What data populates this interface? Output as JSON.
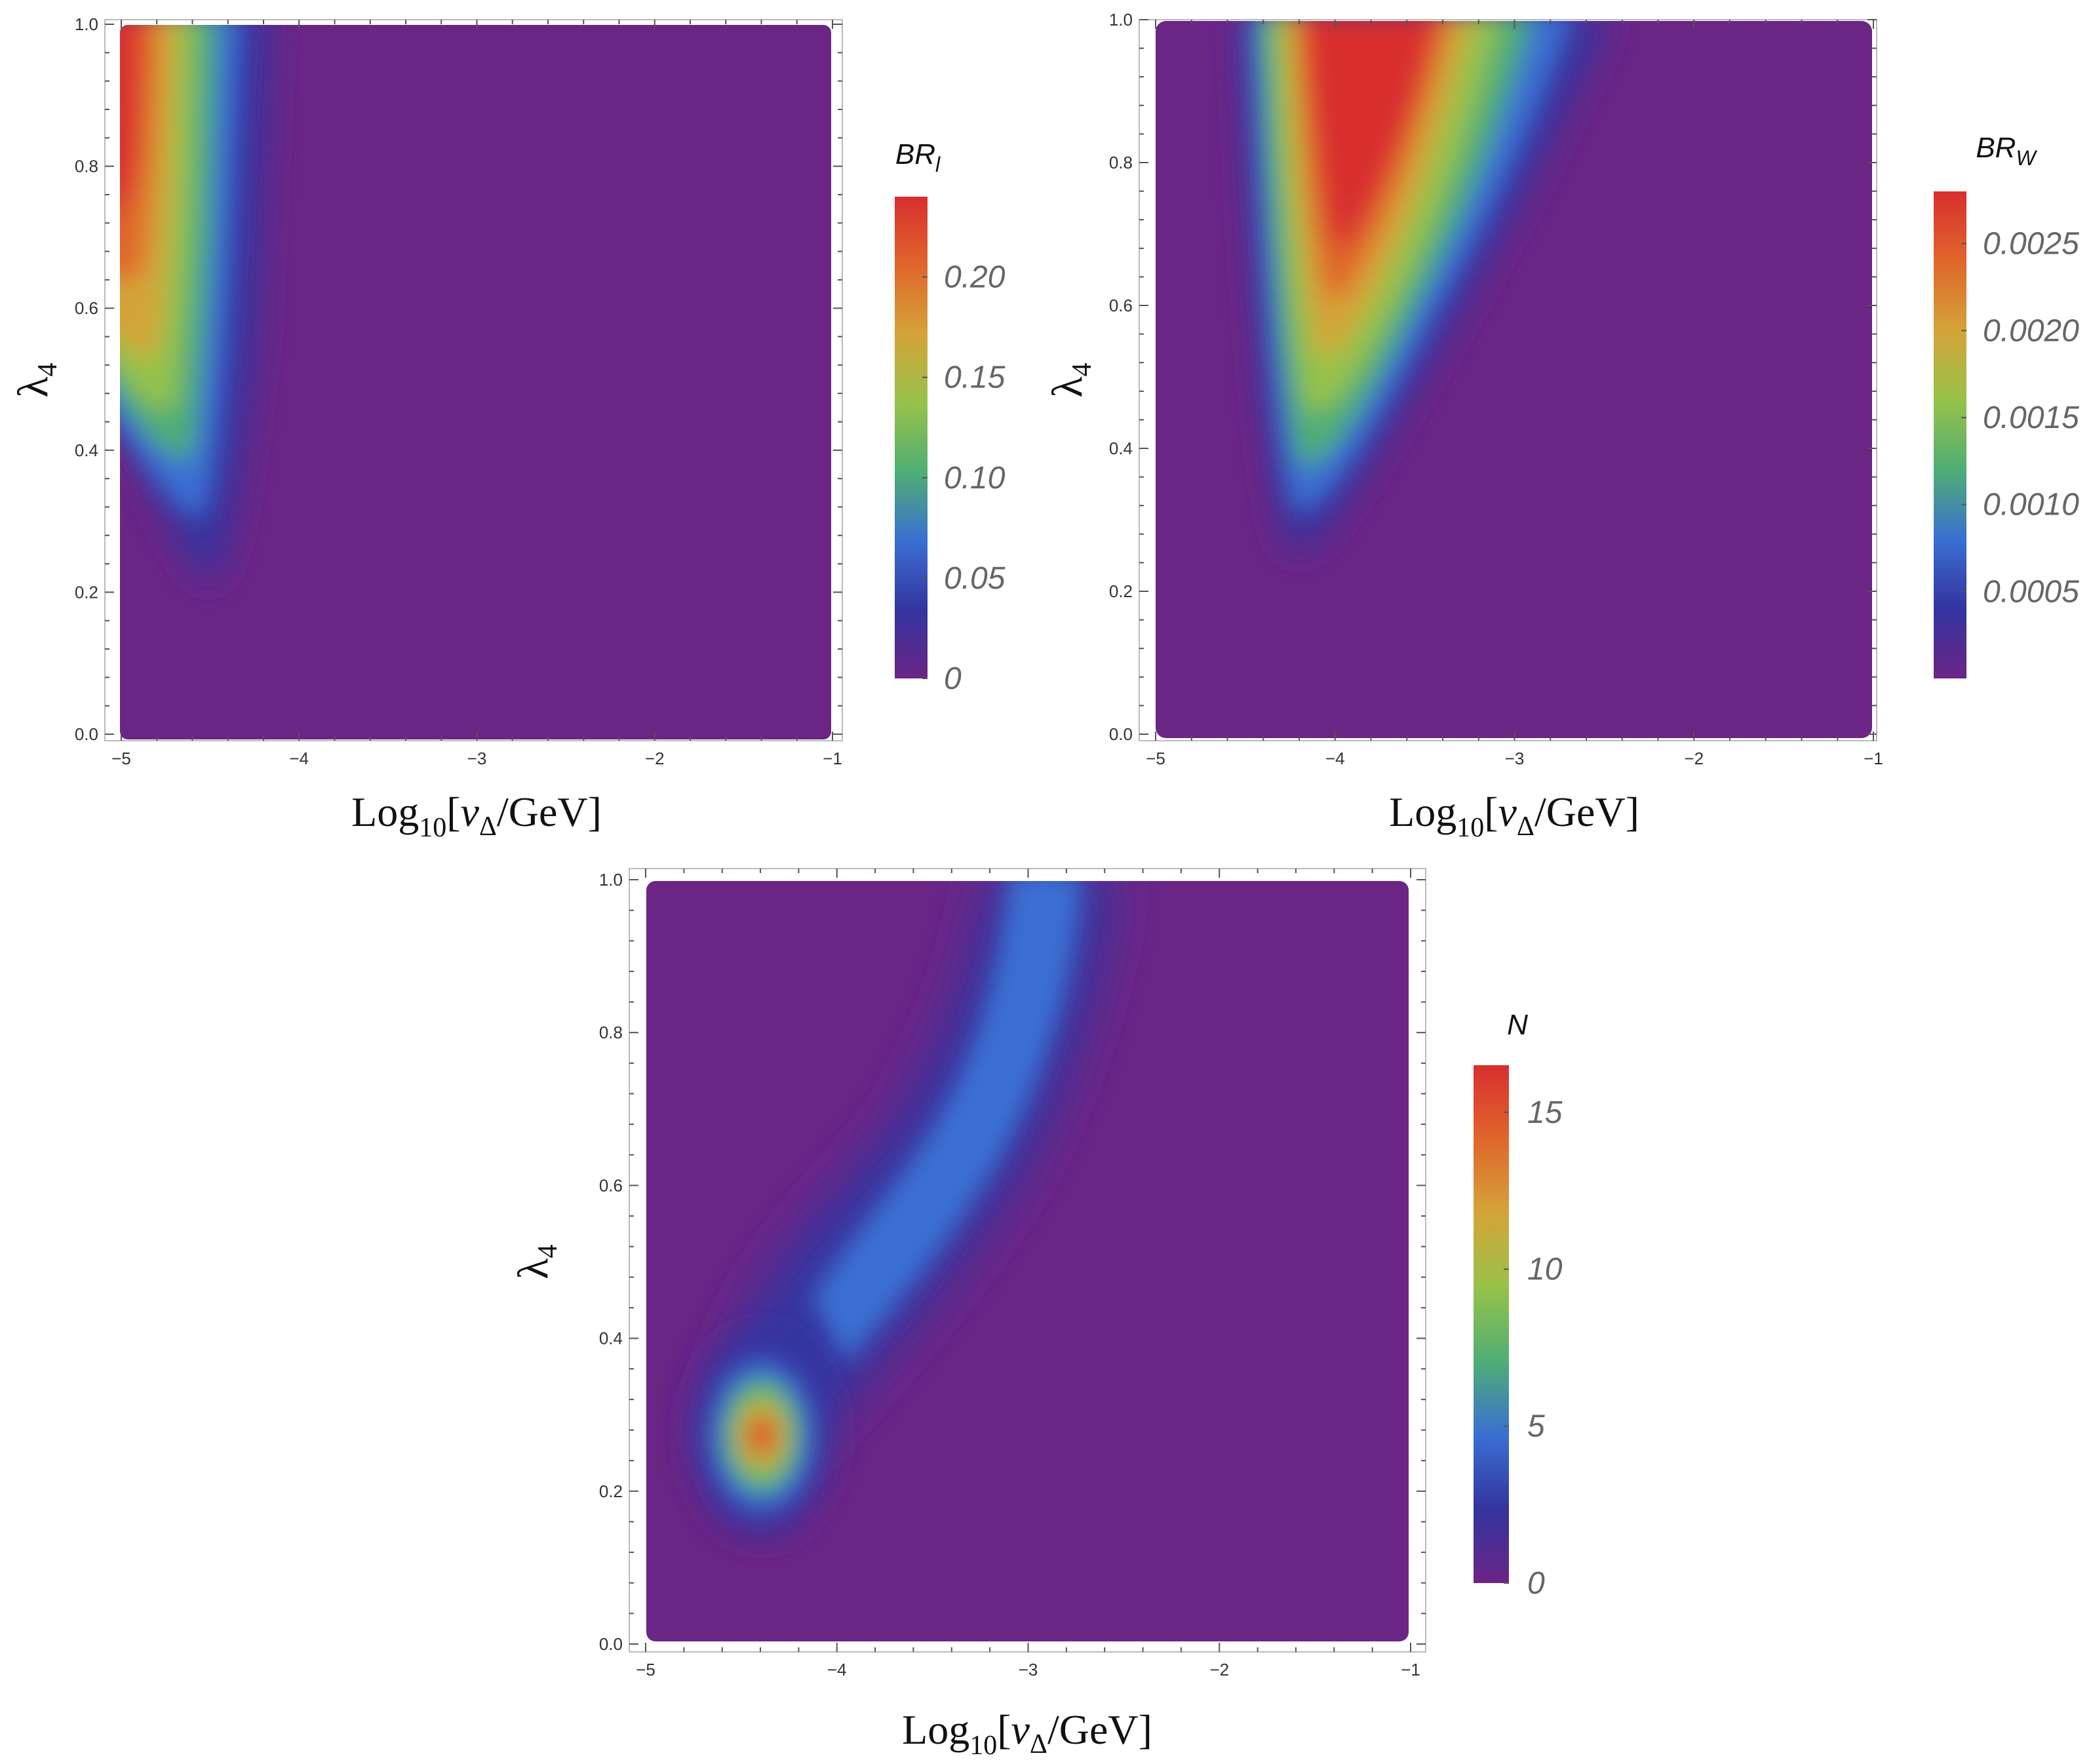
{
  "palette": {
    "background": "#6b2585",
    "stops": [
      "#6b2585",
      "#3434a0",
      "#3a6fd2",
      "#4fae74",
      "#97c24a",
      "#d4a438",
      "#e0662c",
      "#d82f2f"
    ]
  },
  "axes": {
    "xlabel_main": "Log",
    "xlabel_sub": "10",
    "xlabel_open": "[",
    "xlabel_var": "v",
    "xlabel_var_sub": "Δ",
    "xlabel_rest": "/GeV]",
    "ylabel_main": "λ",
    "ylabel_sub": "4",
    "x_ticks": [
      -5,
      -4,
      -3,
      -2,
      -1
    ],
    "x_tick_labels": [
      "−5",
      "−4",
      "−3",
      "−2",
      "−1"
    ],
    "y_ticks": [
      0.0,
      0.2,
      0.4,
      0.6,
      0.8,
      1.0
    ],
    "y_tick_labels": [
      "0.0",
      "0.2",
      "0.4",
      "0.6",
      "0.8",
      "1.0"
    ]
  },
  "chart_data": [
    {
      "type": "heatmap",
      "xlim": [
        -5,
        -1
      ],
      "ylim": [
        0,
        1
      ],
      "colorbar": {
        "title": "BR",
        "title_sub": "l",
        "range": [
          0,
          0.24
        ],
        "ticks": [
          0,
          0.05,
          0.1,
          0.15,
          0.2
        ],
        "tick_labels": [
          "0",
          "0.05",
          "0.10",
          "0.15",
          "0.20"
        ]
      },
      "feature": {
        "description_values": "peak near x=-5, λ4≥0.85; falls to zero by x≈-4.4; onset near λ4≈0.25",
        "peak_value": 0.24
      }
    },
    {
      "type": "heatmap",
      "xlim": [
        -5,
        -1
      ],
      "ylim": [
        0,
        1
      ],
      "colorbar": {
        "title": "BR",
        "title_sub": "W",
        "range": [
          0,
          0.0028
        ],
        "ticks": [
          0.0005,
          0.001,
          0.0015,
          0.002,
          0.0025
        ],
        "tick_labels": [
          "0.0005",
          "0.0010",
          "0.0015",
          "0.0020",
          "0.0025"
        ]
      },
      "feature": {
        "description_values": "wedge opening upward from x≈-4.25, λ4≈0.25; peak region x≈-4 to -3.3 at λ4≈1",
        "peak_value": 0.0028
      }
    },
    {
      "type": "heatmap",
      "xlim": [
        -5,
        -1
      ],
      "ylim": [
        0,
        1
      ],
      "colorbar": {
        "title": "N",
        "title_sub": "",
        "range": [
          0,
          16.5
        ],
        "ticks": [
          0,
          5,
          10,
          15
        ],
        "tick_labels": [
          "0",
          "5",
          "10",
          "15"
        ]
      },
      "feature": {
        "description_values": "hot spot at x≈-4.4, λ4≈0.27 (N≈16); weaker band rising to x≈-2.8 at λ4=1",
        "peak_value": 16.5
      }
    }
  ]
}
